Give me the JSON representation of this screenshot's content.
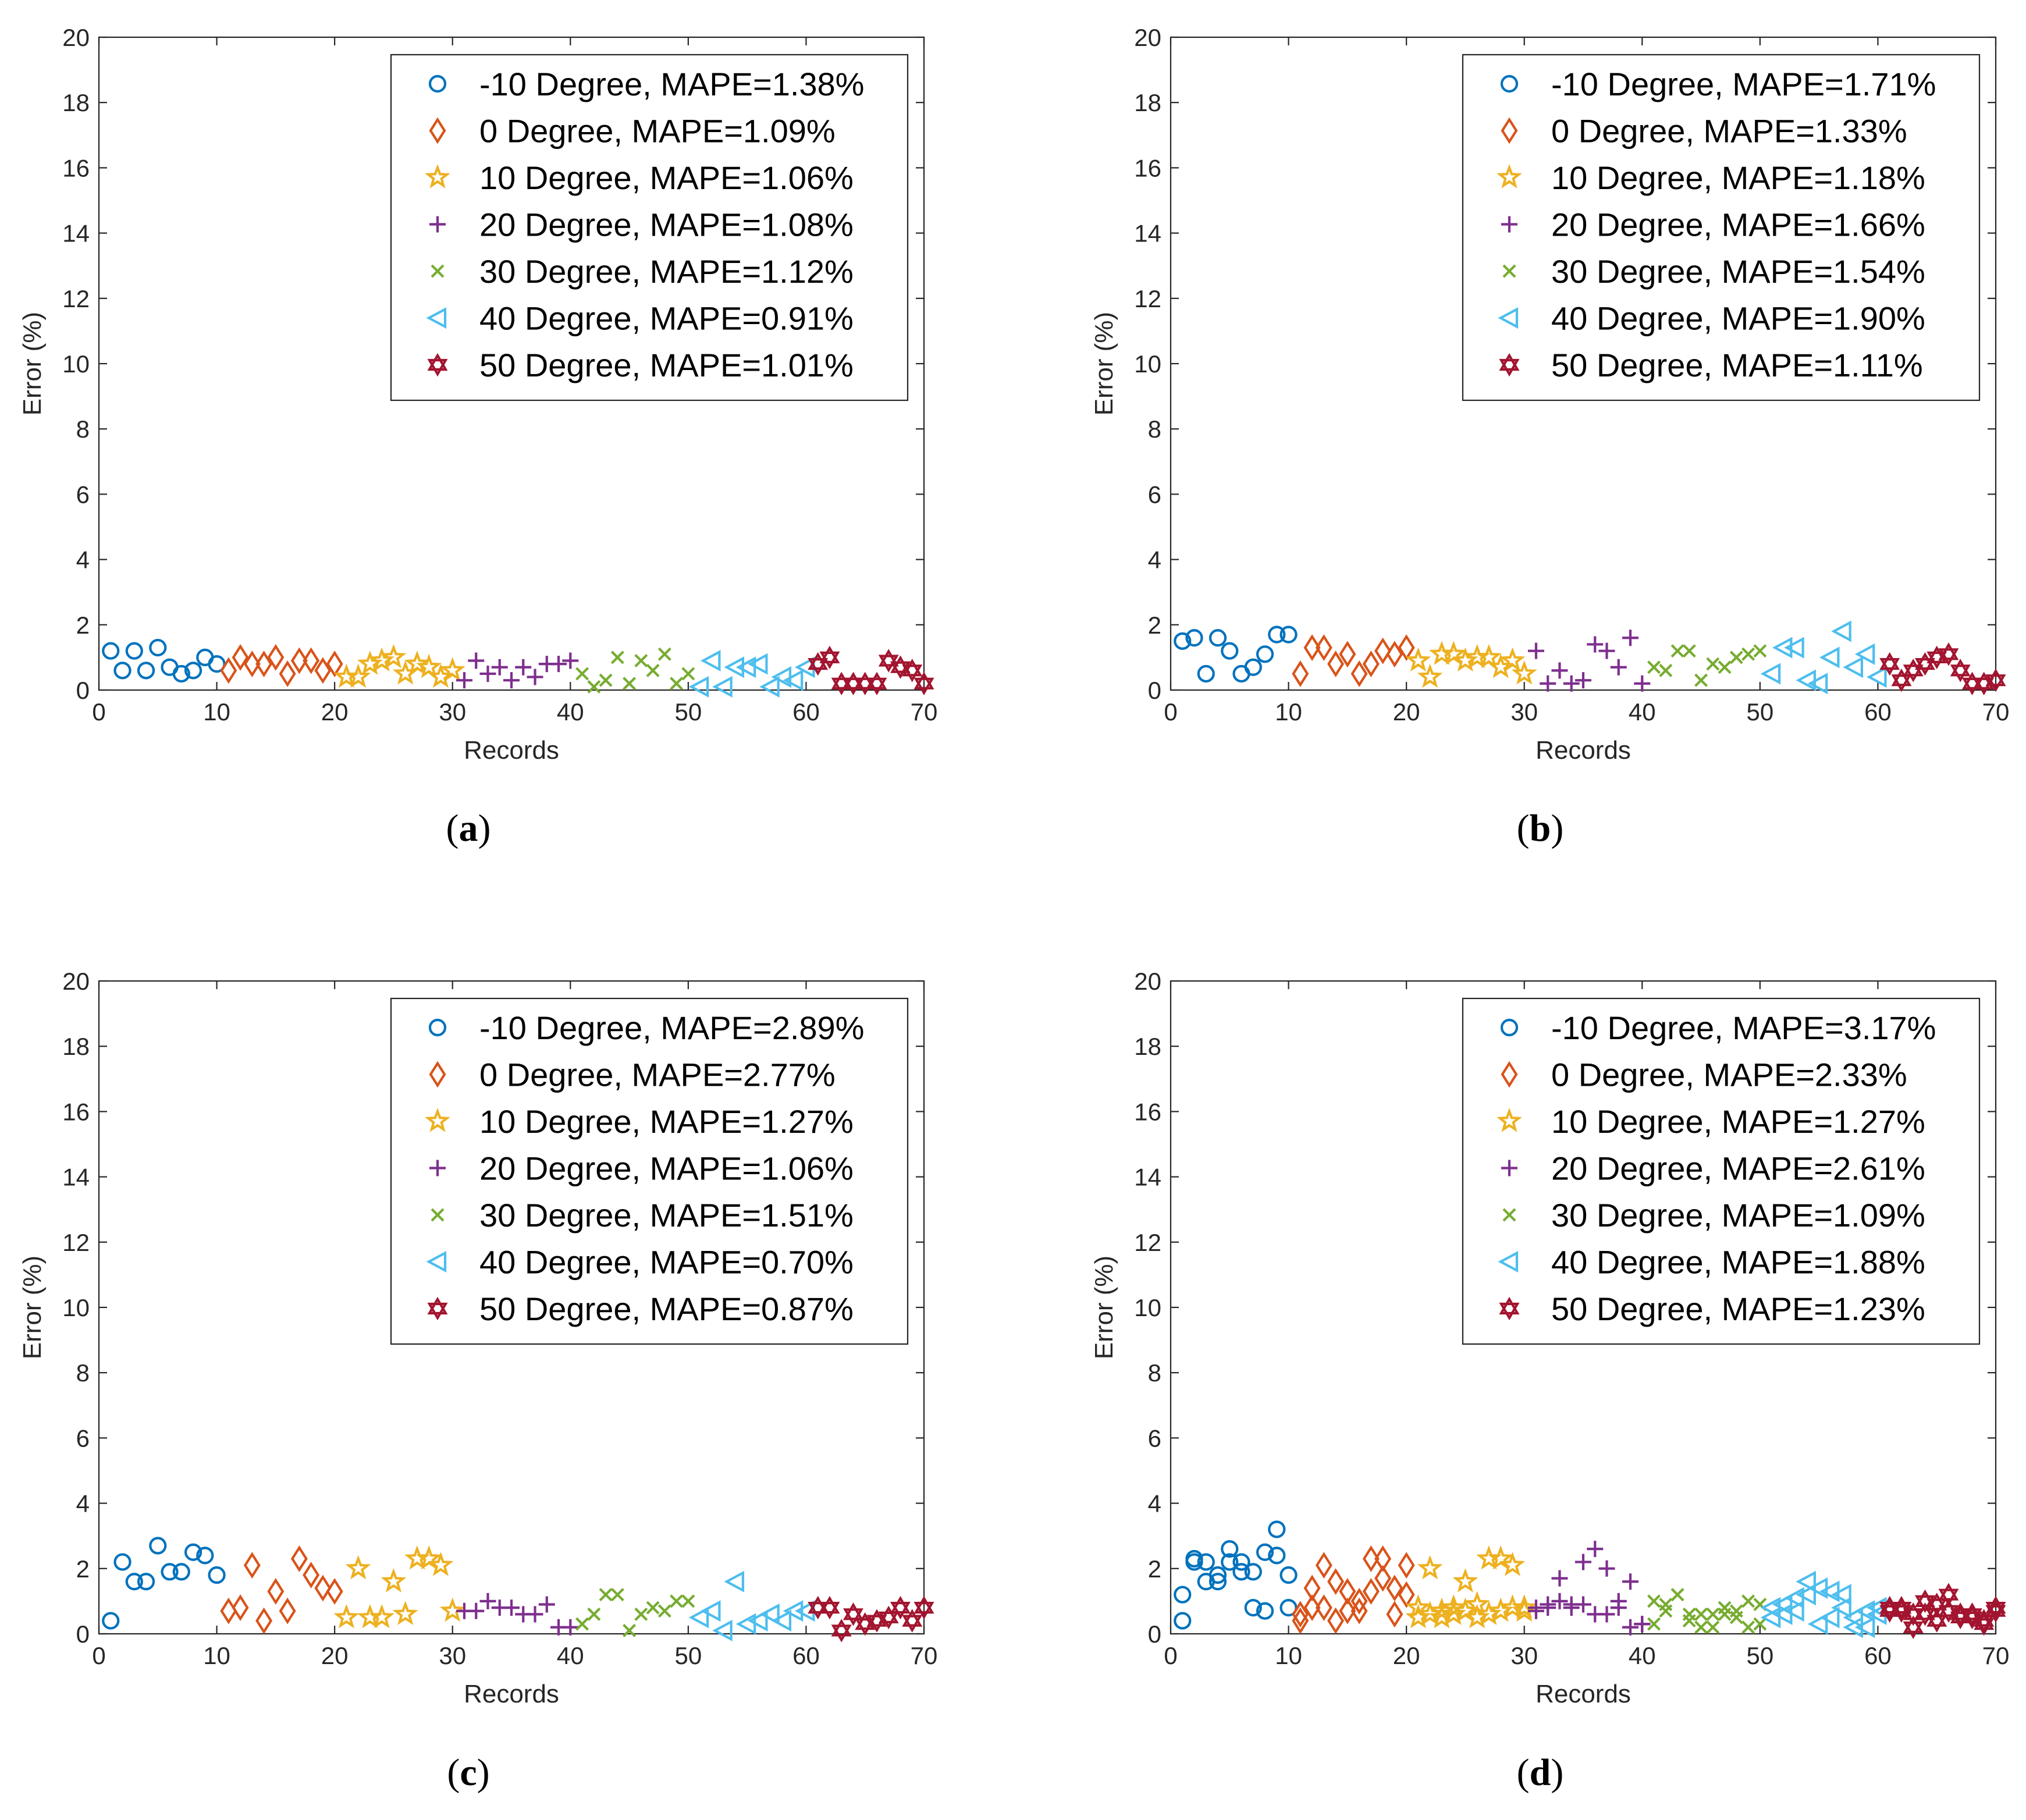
{
  "chart_data": [
    {
      "panel": "a",
      "type": "scatter",
      "xlabel": "Records",
      "ylabel": "Error (%)",
      "xlim": [
        0,
        70
      ],
      "ylim": [
        0,
        20
      ],
      "xticks": [
        "0",
        "10",
        "20",
        "30",
        "40",
        "50",
        "60",
        "70"
      ],
      "yticks": [
        "0",
        "2",
        "4",
        "6",
        "8",
        "10",
        "12",
        "14",
        "16",
        "18",
        "20"
      ],
      "legend_position": "top-right",
      "series": [
        {
          "name": "-10 Degree, MAPE=1.38%",
          "marker": "circle",
          "color": "#0072BD",
          "x": [
            1,
            2,
            3,
            4,
            5,
            6,
            7,
            8,
            9,
            10
          ],
          "y": [
            1.2,
            0.6,
            1.2,
            0.6,
            1.3,
            0.7,
            0.5,
            0.6,
            1.0,
            0.8
          ]
        },
        {
          "name": "0 Degree, MAPE=1.09%",
          "marker": "diamond",
          "color": "#D95319",
          "x": [
            11,
            12,
            13,
            14,
            15,
            16,
            17,
            18,
            19,
            20
          ],
          "y": [
            0.6,
            1.0,
            0.8,
            0.8,
            1.0,
            0.5,
            0.9,
            0.9,
            0.6,
            0.8
          ]
        },
        {
          "name": "10 Degree, MAPE=1.06%",
          "marker": "star",
          "color": "#EDB120",
          "x": [
            21,
            22,
            23,
            24,
            25,
            26,
            27,
            28,
            29,
            30
          ],
          "y": [
            0.4,
            0.4,
            0.8,
            0.9,
            1.0,
            0.5,
            0.8,
            0.7,
            0.4,
            0.6
          ]
        },
        {
          "name": "20 Degree, MAPE=1.08%",
          "marker": "plus",
          "color": "#7E2F8E",
          "x": [
            31,
            32,
            33,
            34,
            35,
            36,
            37,
            38,
            39,
            40
          ],
          "y": [
            0.3,
            0.9,
            0.5,
            0.7,
            0.3,
            0.7,
            0.4,
            0.8,
            0.8,
            0.9
          ]
        },
        {
          "name": "30 Degree, MAPE=1.12%",
          "marker": "cross",
          "color": "#77AC30",
          "x": [
            41,
            42,
            43,
            44,
            45,
            46,
            47,
            48,
            49,
            50
          ],
          "y": [
            0.5,
            0.1,
            0.3,
            1.0,
            0.2,
            0.9,
            0.6,
            1.1,
            0.2,
            0.5
          ]
        },
        {
          "name": "40 Degree, MAPE=0.91%",
          "marker": "triangle-left",
          "color": "#4DBEEE",
          "x": [
            51,
            52,
            53,
            54,
            55,
            56,
            57,
            58,
            59,
            60
          ],
          "y": [
            0.1,
            0.9,
            0.1,
            0.7,
            0.7,
            0.8,
            0.1,
            0.4,
            0.3,
            0.7
          ]
        },
        {
          "name": "50 Degree, MAPE=1.01%",
          "marker": "hexagram",
          "color": "#A2142F",
          "x": [
            61,
            62,
            63,
            64,
            65,
            66,
            67,
            68,
            69,
            70
          ],
          "y": [
            0.8,
            1.0,
            0.2,
            0.2,
            0.2,
            0.2,
            0.9,
            0.7,
            0.6,
            0.2
          ]
        }
      ]
    },
    {
      "panel": "b",
      "type": "scatter",
      "xlabel": "Records",
      "ylabel": "Error (%)",
      "xlim": [
        0,
        70
      ],
      "ylim": [
        0,
        20
      ],
      "xticks": [
        "0",
        "10",
        "20",
        "30",
        "40",
        "50",
        "60",
        "70"
      ],
      "yticks": [
        "0",
        "2",
        "4",
        "6",
        "8",
        "10",
        "12",
        "14",
        "16",
        "18",
        "20"
      ],
      "legend_position": "top-right",
      "series": [
        {
          "name": "-10 Degree, MAPE=1.71%",
          "marker": "circle",
          "color": "#0072BD",
          "x": [
            1,
            2,
            3,
            4,
            5,
            6,
            7,
            8,
            9,
            10
          ],
          "y": [
            1.5,
            1.6,
            0.5,
            1.6,
            1.2,
            0.5,
            0.7,
            1.1,
            1.7,
            1.7
          ]
        },
        {
          "name": "0 Degree, MAPE=1.33%",
          "marker": "diamond",
          "color": "#D95319",
          "x": [
            11,
            12,
            13,
            14,
            15,
            16,
            17,
            18,
            19,
            20
          ],
          "y": [
            0.5,
            1.3,
            1.3,
            0.8,
            1.1,
            0.5,
            0.8,
            1.2,
            1.1,
            1.3
          ]
        },
        {
          "name": "10 Degree, MAPE=1.18%",
          "marker": "star",
          "color": "#EDB120",
          "x": [
            21,
            22,
            23,
            24,
            25,
            26,
            27,
            28,
            29,
            30
          ],
          "y": [
            0.9,
            0.4,
            1.1,
            1.1,
            0.9,
            1.0,
            1.0,
            0.7,
            0.9,
            0.5
          ]
        },
        {
          "name": "20 Degree, MAPE=1.66%",
          "marker": "plus",
          "color": "#7E2F8E",
          "x": [
            31,
            32,
            33,
            34,
            35,
            36,
            37,
            38,
            39,
            40
          ],
          "y": [
            1.2,
            0.2,
            0.6,
            0.2,
            0.3,
            1.4,
            1.2,
            0.7,
            1.6,
            0.2
          ]
        },
        {
          "name": "30 Degree, MAPE=1.54%",
          "marker": "cross",
          "color": "#77AC30",
          "x": [
            41,
            42,
            43,
            44,
            45,
            46,
            47,
            48,
            49,
            50
          ],
          "y": [
            0.7,
            0.6,
            1.2,
            1.2,
            0.3,
            0.8,
            0.7,
            1.0,
            1.1,
            1.2
          ]
        },
        {
          "name": "40 Degree, MAPE=1.90%",
          "marker": "triangle-left",
          "color": "#4DBEEE",
          "x": [
            51,
            52,
            53,
            54,
            55,
            56,
            57,
            58,
            59,
            60
          ],
          "y": [
            0.5,
            1.3,
            1.3,
            0.3,
            0.2,
            1.0,
            1.8,
            0.7,
            1.1,
            0.4
          ]
        },
        {
          "name": "50 Degree, MAPE=1.11%",
          "marker": "hexagram",
          "color": "#A2142F",
          "x": [
            61,
            62,
            63,
            64,
            65,
            66,
            67,
            68,
            69,
            70
          ],
          "y": [
            0.8,
            0.3,
            0.6,
            0.8,
            1.0,
            1.1,
            0.6,
            0.2,
            0.2,
            0.3
          ]
        }
      ]
    },
    {
      "panel": "c",
      "type": "scatter",
      "xlabel": "Records",
      "ylabel": "Error (%)",
      "xlim": [
        0,
        70
      ],
      "ylim": [
        0,
        20
      ],
      "xticks": [
        "0",
        "10",
        "20",
        "30",
        "40",
        "50",
        "60",
        "70"
      ],
      "yticks": [
        "0",
        "2",
        "4",
        "6",
        "8",
        "10",
        "12",
        "14",
        "16",
        "18",
        "20"
      ],
      "legend_position": "top-right",
      "series": [
        {
          "name": "-10 Degree, MAPE=2.89%",
          "marker": "circle",
          "color": "#0072BD",
          "x": [
            1,
            2,
            3,
            4,
            5,
            6,
            7,
            8,
            9,
            10
          ],
          "y": [
            0.4,
            2.2,
            1.6,
            1.6,
            2.7,
            1.9,
            1.9,
            2.5,
            2.4,
            1.8
          ]
        },
        {
          "name": "0 Degree, MAPE=2.77%",
          "marker": "diamond",
          "color": "#D95319",
          "x": [
            11,
            12,
            13,
            14,
            15,
            16,
            17,
            18,
            19,
            20
          ],
          "y": [
            0.7,
            0.8,
            2.1,
            0.4,
            1.3,
            0.7,
            2.3,
            1.8,
            1.4,
            1.3
          ]
        },
        {
          "name": "10 Degree, MAPE=1.27%",
          "marker": "star",
          "color": "#EDB120",
          "x": [
            21,
            22,
            23,
            24,
            25,
            26,
            27,
            28,
            29,
            30
          ],
          "y": [
            0.5,
            2.0,
            0.5,
            0.5,
            1.6,
            0.6,
            2.3,
            2.3,
            2.1,
            0.7
          ]
        },
        {
          "name": "20 Degree, MAPE=1.06%",
          "marker": "plus",
          "color": "#7E2F8E",
          "x": [
            31,
            32,
            33,
            34,
            35,
            36,
            37,
            38,
            39,
            40
          ],
          "y": [
            0.7,
            0.7,
            1.0,
            0.8,
            0.8,
            0.6,
            0.6,
            0.9,
            0.2,
            0.2
          ]
        },
        {
          "name": "30 Degree, MAPE=1.51%",
          "marker": "cross",
          "color": "#77AC30",
          "x": [
            41,
            42,
            43,
            44,
            45,
            46,
            47,
            48,
            49,
            50
          ],
          "y": [
            0.3,
            0.6,
            1.2,
            1.2,
            0.1,
            0.6,
            0.8,
            0.7,
            1.0,
            1.0
          ]
        },
        {
          "name": "40 Degree, MAPE=0.70%",
          "marker": "triangle-left",
          "color": "#4DBEEE",
          "x": [
            51,
            52,
            53,
            54,
            55,
            56,
            57,
            58,
            59,
            60
          ],
          "y": [
            0.5,
            0.7,
            0.1,
            1.6,
            0.3,
            0.4,
            0.6,
            0.4,
            0.7,
            0.7
          ]
        },
        {
          "name": "50 Degree, MAPE=0.87%",
          "marker": "hexagram",
          "color": "#A2142F",
          "x": [
            61,
            62,
            63,
            64,
            65,
            66,
            67,
            68,
            69,
            70
          ],
          "y": [
            0.8,
            0.8,
            0.1,
            0.6,
            0.3,
            0.4,
            0.5,
            0.8,
            0.4,
            0.8
          ]
        }
      ]
    },
    {
      "panel": "d",
      "type": "scatter",
      "xlabel": "Records",
      "ylabel": "Error (%)",
      "xlim": [
        0,
        70
      ],
      "ylim": [
        0,
        20
      ],
      "xticks": [
        "0",
        "10",
        "20",
        "30",
        "40",
        "50",
        "60",
        "70"
      ],
      "yticks": [
        "0",
        "2",
        "4",
        "6",
        "8",
        "10",
        "12",
        "14",
        "16",
        "18",
        "20"
      ],
      "legend_position": "top-right",
      "series": [
        {
          "name": "-10 Degree, MAPE=3.17%",
          "marker": "circle",
          "color": "#0072BD",
          "x": [
            1,
            1,
            2,
            2,
            3,
            3,
            4,
            4,
            5,
            5,
            6,
            6,
            7,
            7,
            8,
            8,
            9,
            9,
            10,
            10
          ],
          "y": [
            1.2,
            0.4,
            2.3,
            2.2,
            1.6,
            2.2,
            1.6,
            1.8,
            2.6,
            2.2,
            2.2,
            1.9,
            0.8,
            1.9,
            0.7,
            2.5,
            3.2,
            2.4,
            1.8,
            0.8
          ]
        },
        {
          "name": "0 Degree, MAPE=2.33%",
          "marker": "diamond",
          "color": "#D95319",
          "x": [
            11,
            11,
            12,
            12,
            13,
            13,
            14,
            14,
            15,
            15,
            16,
            16,
            17,
            17,
            18,
            18,
            19,
            19,
            20,
            20
          ],
          "y": [
            0.4,
            0.6,
            0.8,
            1.4,
            2.1,
            0.8,
            1.6,
            0.4,
            1.3,
            0.7,
            0.7,
            1.0,
            2.3,
            1.3,
            2.3,
            1.7,
            1.4,
            0.6,
            2.1,
            1.2
          ]
        },
        {
          "name": "10 Degree, MAPE=1.27%",
          "marker": "star",
          "color": "#EDB120",
          "x": [
            21,
            21,
            22,
            22,
            23,
            23,
            24,
            24,
            25,
            25,
            26,
            26,
            27,
            27,
            28,
            28,
            29,
            29,
            30,
            30
          ],
          "y": [
            0.5,
            0.8,
            2.0,
            0.6,
            0.5,
            0.7,
            0.6,
            0.8,
            1.6,
            0.7,
            0.5,
            0.9,
            2.3,
            0.6,
            2.3,
            0.7,
            2.1,
            0.8,
            0.7,
            0.8
          ]
        },
        {
          "name": "20 Degree, MAPE=2.61%",
          "marker": "plus",
          "color": "#7E2F8E",
          "x": [
            31,
            31,
            32,
            32,
            33,
            33,
            34,
            34,
            35,
            35,
            36,
            36,
            37,
            37,
            38,
            38,
            39,
            39,
            40,
            40
          ],
          "y": [
            0.8,
            0.7,
            0.8,
            0.9,
            1.7,
            1.0,
            0.8,
            0.9,
            2.2,
            0.9,
            2.6,
            0.6,
            2.0,
            0.6,
            1.0,
            0.8,
            1.6,
            0.2,
            0.3,
            0.3
          ]
        },
        {
          "name": "30 Degree, MAPE=1.09%",
          "marker": "cross",
          "color": "#77AC30",
          "x": [
            41,
            41,
            42,
            42,
            43,
            43,
            44,
            44,
            45,
            45,
            46,
            46,
            47,
            47,
            48,
            48,
            49,
            49,
            50,
            50
          ],
          "y": [
            0.3,
            1.0,
            0.7,
            0.9,
            1.2,
            1.2,
            0.6,
            0.4,
            0.6,
            0.2,
            0.6,
            0.2,
            0.8,
            0.6,
            0.5,
            0.7,
            1.0,
            0.2,
            0.9,
            0.3
          ]
        },
        {
          "name": "40 Degree, MAPE=1.88%",
          "marker": "triangle-left",
          "color": "#4DBEEE",
          "x": [
            51,
            51,
            52,
            52,
            53,
            53,
            54,
            54,
            55,
            55,
            56,
            56,
            57,
            57,
            58,
            58,
            59,
            59,
            60,
            60
          ],
          "y": [
            0.5,
            0.8,
            0.9,
            0.6,
            1.1,
            0.7,
            1.6,
            1.2,
            1.4,
            0.3,
            1.3,
            0.5,
            1.2,
            0.8,
            0.5,
            0.2,
            0.7,
            0.2,
            0.8,
            0.6
          ]
        },
        {
          "name": "50 Degree, MAPE=1.23%",
          "marker": "hexagram",
          "color": "#A2142F",
          "x": [
            61,
            61,
            62,
            62,
            63,
            63,
            64,
            64,
            65,
            65,
            66,
            66,
            67,
            67,
            68,
            68,
            69,
            69,
            70,
            70
          ],
          "y": [
            0.8,
            0.7,
            0.7,
            0.8,
            0.2,
            0.6,
            1.0,
            0.6,
            0.9,
            0.4,
            1.2,
            0.7,
            0.5,
            0.6,
            0.5,
            0.6,
            0.3,
            0.4,
            0.8,
            0.7
          ]
        }
      ]
    }
  ],
  "captions": [
    "(a)",
    "(b)",
    "(c)",
    "(d)"
  ]
}
